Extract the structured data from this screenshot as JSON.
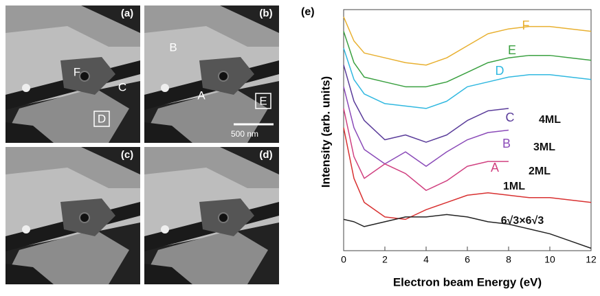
{
  "panels": [
    {
      "label": "(a)",
      "markers": [
        "F",
        "C",
        "D"
      ]
    },
    {
      "label": "(b)",
      "markers": [
        "B",
        "A",
        "E"
      ],
      "scale_bar": "500 nm"
    },
    {
      "label": "(c)"
    },
    {
      "label": "(d)"
    }
  ],
  "chart_data": {
    "type": "line",
    "title": "(e)",
    "x_label": "Electron beam Energy (eV)",
    "y_label": "Intensity (arb. units)",
    "x": [
      0,
      0.5,
      1,
      2,
      3,
      4,
      5,
      6,
      7,
      8,
      9,
      10,
      11,
      12
    ],
    "xlim": [
      0,
      12
    ],
    "xticks": [
      0,
      2,
      4,
      6,
      8,
      10,
      12
    ],
    "ylim": [
      0,
      10
    ],
    "series": [
      {
        "name": "F",
        "color": "#e8b030",
        "values": [
          9.7,
          8.7,
          8.2,
          8.0,
          7.8,
          7.7,
          8.0,
          8.5,
          9.0,
          9.2,
          9.3,
          9.3,
          9.2,
          9.1
        ]
      },
      {
        "name": "E",
        "color": "#3aa040",
        "values": [
          9.1,
          7.8,
          7.2,
          7.0,
          6.8,
          6.8,
          7.0,
          7.4,
          7.8,
          8.0,
          8.1,
          8.1,
          8.0,
          7.9
        ]
      },
      {
        "name": "D",
        "color": "#30b8e0",
        "values": [
          8.4,
          7.1,
          6.5,
          6.1,
          6.0,
          5.9,
          6.2,
          6.8,
          7.0,
          7.2,
          7.3,
          7.3,
          7.2,
          7.1
        ]
      },
      {
        "name": "C",
        "color": "#5a3c9a",
        "values": [
          7.7,
          6.2,
          5.4,
          4.6,
          4.8,
          4.5,
          4.8,
          5.4,
          5.8,
          5.9,
          null,
          null,
          null,
          null
        ]
      },
      {
        "name": "B",
        "color": "#8a4ab8",
        "values": [
          6.8,
          5.1,
          4.2,
          3.6,
          4.1,
          3.5,
          4.1,
          4.6,
          4.9,
          5.0,
          null,
          null,
          null,
          null
        ]
      },
      {
        "name": "A",
        "color": "#d04080",
        "values": [
          5.9,
          3.9,
          3.0,
          3.6,
          3.2,
          2.5,
          2.9,
          3.5,
          3.7,
          3.7,
          null,
          null,
          null,
          null
        ]
      },
      {
        "name": "1ML",
        "color": "#d83030",
        "values": [
          5.1,
          3.0,
          2.0,
          1.4,
          1.3,
          1.7,
          2.0,
          2.3,
          2.4,
          2.3,
          2.2,
          2.2,
          2.1,
          2.0
        ]
      },
      {
        "name": "6√3×6√3",
        "color": "#222222",
        "values": [
          1.3,
          1.2,
          1.0,
          1.2,
          1.4,
          1.4,
          1.5,
          1.4,
          1.2,
          1.1,
          0.9,
          0.7,
          0.4,
          0.1
        ]
      }
    ],
    "annotations": [
      "4ML",
      "3ML",
      "2ML"
    ]
  }
}
